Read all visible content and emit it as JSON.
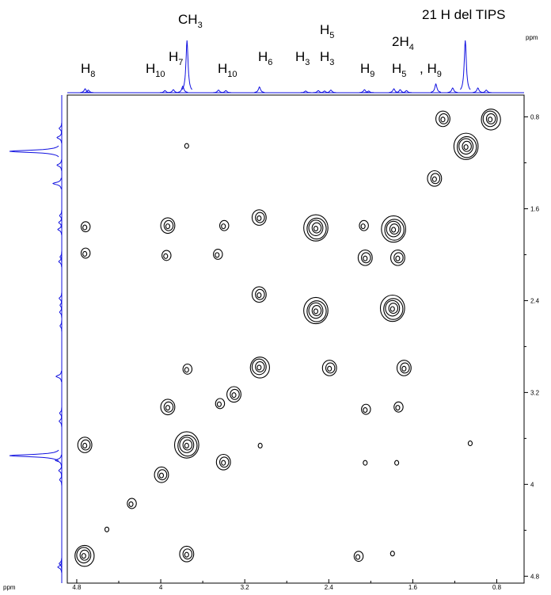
{
  "chart_data": {
    "type": "cosy",
    "x_unit": "ppm",
    "y_unit": "ppm",
    "xlim": [
      4.89,
      0.54
    ],
    "ylim": [
      0.61,
      4.86
    ],
    "xticks": [
      4.8,
      4.0,
      3.2,
      2.4,
      1.6,
      0.8
    ],
    "yticks": [
      0.8,
      1.6,
      2.4,
      3.2,
      4.0,
      4.8
    ],
    "xticks_minor": [
      4.4,
      3.6,
      2.8,
      2.0,
      1.2
    ],
    "yticks_minor": [
      1.2,
      2.0,
      2.8,
      3.6,
      4.4
    ],
    "annotations": [
      {
        "text": "H",
        "sub": "8"
      },
      {
        "text": "H",
        "sub": "10"
      },
      {
        "text": "H",
        "sub": "7"
      },
      {
        "text": "CH",
        "sub": "3"
      },
      {
        "text": "H",
        "sub": "10"
      },
      {
        "text": "H",
        "sub": "6"
      },
      {
        "text": "H",
        "sub": "3"
      },
      {
        "text": "H",
        "sub": "5"
      },
      {
        "text": "H",
        "sub": "3"
      },
      {
        "text": "H",
        "sub": "9"
      },
      {
        "text": "2H",
        "sub": "4"
      },
      {
        "text": "H",
        "sub": "5"
      },
      {
        "text": ", H",
        "sub": "9"
      },
      {
        "text": "21 H del TIPS"
      }
    ],
    "peaks": {
      "x": [
        4.72,
        4.72,
        4.72,
        4.73,
        4.51,
        4.28,
        3.99,
        3.75,
        3.75,
        3.75,
        3.75,
        3.93,
        3.95,
        3.93,
        3.44,
        3.3,
        3.4,
        3.4,
        3.46,
        3.06,
        3.06,
        3.06,
        3.05,
        2.52,
        2.52,
        2.39,
        2.07,
        2.05,
        2.05,
        2.05,
        2.12,
        1.79,
        1.78,
        1.74,
        1.79,
        1.68,
        1.74,
        1.75,
        1.05,
        1.09,
        1.31,
        0.86,
        1.39
      ],
      "y": [
        1.76,
        1.99,
        3.66,
        4.62,
        4.39,
        4.17,
        3.92,
        3.66,
        4.61,
        3.0,
        1.05,
        1.75,
        2.01,
        3.33,
        3.3,
        3.22,
        3.81,
        1.75,
        2.0,
        1.68,
        2.35,
        2.98,
        3.66,
        1.77,
        2.49,
        2.99,
        1.75,
        2.03,
        3.35,
        3.81,
        4.63,
        4.6,
        1.78,
        2.03,
        2.47,
        2.99,
        3.33,
        3.81,
        3.64,
        1.06,
        0.82,
        0.82,
        1.34
      ],
      "levels": [
        2,
        2,
        3,
        4,
        1,
        2,
        3,
        5,
        3,
        2,
        1,
        3,
        2,
        3,
        2,
        3,
        3,
        2,
        2,
        3,
        3,
        4,
        1,
        5,
        5,
        3,
        2,
        3,
        2,
        1,
        2,
        1,
        5,
        3,
        5,
        3,
        2,
        1,
        1,
        5,
        3,
        4,
        3
      ]
    },
    "projection": {
      "positions": [
        4.72,
        4.69,
        3.96,
        3.88,
        3.79,
        3.75,
        3.45,
        3.38,
        3.06,
        2.62,
        2.5,
        2.44,
        2.38,
        2.06,
        2.02,
        1.78,
        1.72,
        1.66,
        1.38,
        1.22,
        1.1,
        0.98,
        0.9
      ],
      "heights": [
        9,
        6,
        5,
        7,
        15,
        120,
        6,
        5,
        13,
        4,
        5,
        4,
        6,
        7,
        4,
        9,
        7,
        5,
        20,
        11,
        120,
        11,
        6
      ]
    }
  }
}
